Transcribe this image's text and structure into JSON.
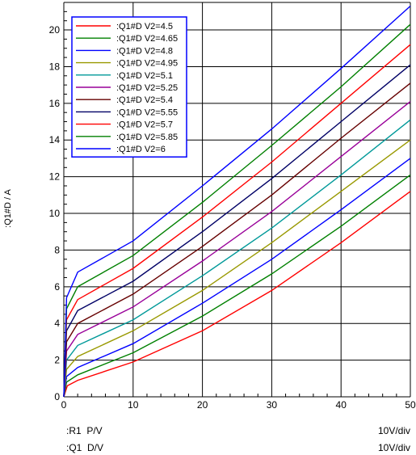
{
  "chart_data": {
    "type": "line",
    "title": "",
    "ylabel": ":Q1#D / A",
    "xlim": [
      0,
      50
    ],
    "ylim": [
      0,
      21.5
    ],
    "x_ticks": [
      "0",
      "10",
      "20",
      "30",
      "40",
      "50"
    ],
    "y_ticks": [
      "0",
      "2",
      "4",
      "6",
      "8",
      "10",
      "12",
      "14",
      "16",
      "18",
      "20"
    ],
    "grid": true,
    "legend_position": "top-left",
    "series": [
      {
        "name": ":Q1#D V2=4.5",
        "color": "#ff0000",
        "points": [
          [
            0,
            0
          ],
          [
            0.5,
            0.6
          ],
          [
            2,
            0.9
          ],
          [
            10,
            1.9
          ],
          [
            20,
            3.6
          ],
          [
            30,
            5.8
          ],
          [
            40,
            8.4
          ],
          [
            50,
            11.2
          ]
        ]
      },
      {
        "name": ":Q1#D V2=4.65",
        "color": "#008000",
        "points": [
          [
            0,
            0
          ],
          [
            0.4,
            0.8
          ],
          [
            2,
            1.2
          ],
          [
            10,
            2.4
          ],
          [
            20,
            4.4
          ],
          [
            30,
            6.7
          ],
          [
            40,
            9.3
          ],
          [
            50,
            12.1
          ]
        ]
      },
      {
        "name": ":Q1#D V2=4.8",
        "color": "#0000ff",
        "points": [
          [
            0,
            0
          ],
          [
            0.4,
            1.1
          ],
          [
            2,
            1.6
          ],
          [
            10,
            2.9
          ],
          [
            20,
            5.1
          ],
          [
            30,
            7.5
          ],
          [
            40,
            10.2
          ],
          [
            50,
            13.0
          ]
        ]
      },
      {
        "name": ":Q1#D V2=4.95",
        "color": "#999900",
        "points": [
          [
            0,
            0
          ],
          [
            0.4,
            1.5
          ],
          [
            2,
            2.2
          ],
          [
            10,
            3.6
          ],
          [
            20,
            5.8
          ],
          [
            30,
            8.4
          ],
          [
            40,
            11.2
          ],
          [
            50,
            14.0
          ]
        ]
      },
      {
        "name": ":Q1#D V2=5.1",
        "color": "#009999",
        "points": [
          [
            0,
            0
          ],
          [
            0.4,
            2.0
          ],
          [
            2,
            2.8
          ],
          [
            10,
            4.2
          ],
          [
            20,
            6.6
          ],
          [
            30,
            9.2
          ],
          [
            40,
            12.1
          ],
          [
            50,
            15.1
          ]
        ]
      },
      {
        "name": ":Q1#D V2=5.25",
        "color": "#990099",
        "points": [
          [
            0,
            0
          ],
          [
            0.4,
            2.5
          ],
          [
            2,
            3.4
          ],
          [
            10,
            4.9
          ],
          [
            20,
            7.4
          ],
          [
            30,
            10.1
          ],
          [
            40,
            13.1
          ],
          [
            50,
            16.1
          ]
        ]
      },
      {
        "name": ":Q1#D V2=5.4",
        "color": "#660000",
        "points": [
          [
            0,
            0
          ],
          [
            0.4,
            3.0
          ],
          [
            2,
            4.0
          ],
          [
            10,
            5.6
          ],
          [
            20,
            8.2
          ],
          [
            30,
            11.0
          ],
          [
            40,
            14.1
          ],
          [
            50,
            17.1
          ]
        ]
      },
      {
        "name": ":Q1#D V2=5.55",
        "color": "#000066",
        "points": [
          [
            0,
            0
          ],
          [
            0.4,
            3.6
          ],
          [
            2,
            4.7
          ],
          [
            10,
            6.3
          ],
          [
            20,
            9.0
          ],
          [
            30,
            11.9
          ],
          [
            40,
            15.0
          ],
          [
            50,
            18.1
          ]
        ]
      },
      {
        "name": ":Q1#D V2=5.7",
        "color": "#ff0000",
        "points": [
          [
            0,
            0
          ],
          [
            0.4,
            4.2
          ],
          [
            2,
            5.3
          ],
          [
            10,
            7.0
          ],
          [
            20,
            9.8
          ],
          [
            30,
            12.8
          ],
          [
            40,
            16.0
          ],
          [
            50,
            19.2
          ]
        ]
      },
      {
        "name": ":Q1#D V2=5.85",
        "color": "#008000",
        "points": [
          [
            0,
            0
          ],
          [
            0.4,
            4.8
          ],
          [
            2,
            6.0
          ],
          [
            10,
            7.7
          ],
          [
            20,
            10.6
          ],
          [
            30,
            13.7
          ],
          [
            40,
            16.9
          ],
          [
            50,
            20.3
          ]
        ]
      },
      {
        "name": ":Q1#D V2=6",
        "color": "#0000ff",
        "points": [
          [
            0,
            0
          ],
          [
            0.4,
            5.4
          ],
          [
            2,
            6.8
          ],
          [
            10,
            8.5
          ],
          [
            20,
            11.5
          ],
          [
            30,
            14.6
          ],
          [
            40,
            17.9
          ],
          [
            50,
            21.3
          ]
        ]
      }
    ]
  },
  "footer": {
    "row1_left": ":R1  P/V",
    "row1_right": "10V/div",
    "row2_left": ":Q1  D/V",
    "row2_right": "10V/div"
  }
}
